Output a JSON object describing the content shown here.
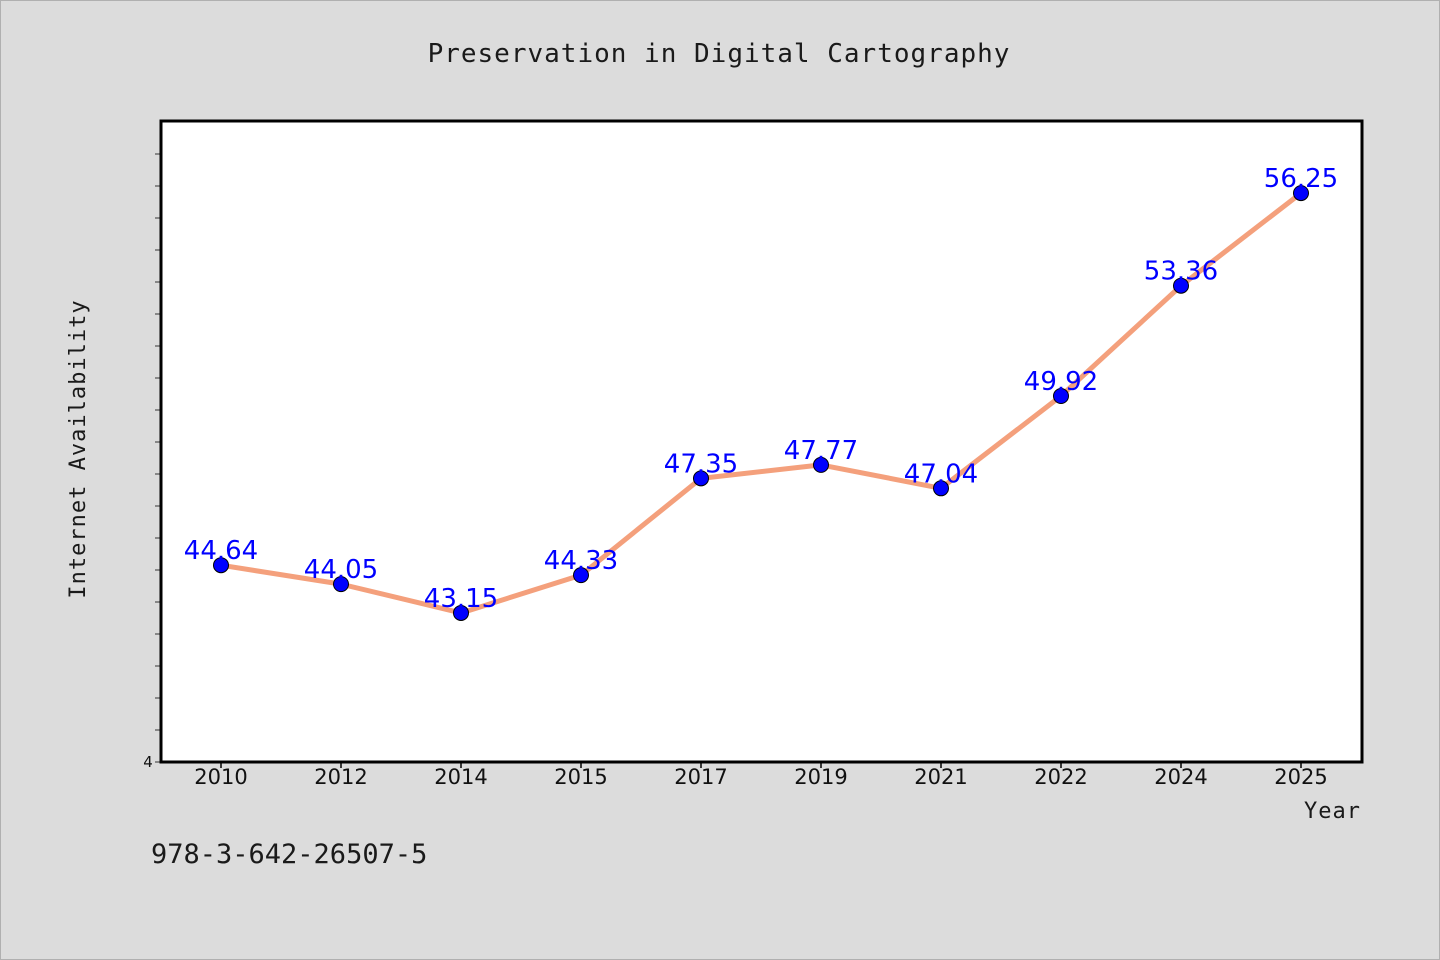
{
  "chart_data": {
    "type": "line",
    "title": "Preservation in Digital Cartography",
    "xlabel": "Year",
    "ylabel": "Internet Availability",
    "categories": [
      "2010",
      "2012",
      "2014",
      "2015",
      "2017",
      "2019",
      "2021",
      "2022",
      "2024",
      "2025"
    ],
    "series": [
      {
        "values": [
          44.64,
          44.05,
          43.15,
          44.33,
          47.35,
          47.77,
          47.04,
          49.92,
          53.36,
          56.25
        ],
        "labels": [
          "44.64",
          "44.05",
          "43.15",
          "44.33",
          "47.35",
          "47.77",
          "47.04",
          "49.92",
          "53.36",
          "56.25"
        ]
      }
    ],
    "ylim": [
      38.5,
      58.5
    ],
    "y_tick_label": "4",
    "grid": false,
    "legend": "none",
    "line_color": "#f4a07c",
    "marker_color": "#0000ff",
    "label_color": "#0000ff"
  },
  "footer": {
    "isbn": "978-3-642-26507-5"
  }
}
